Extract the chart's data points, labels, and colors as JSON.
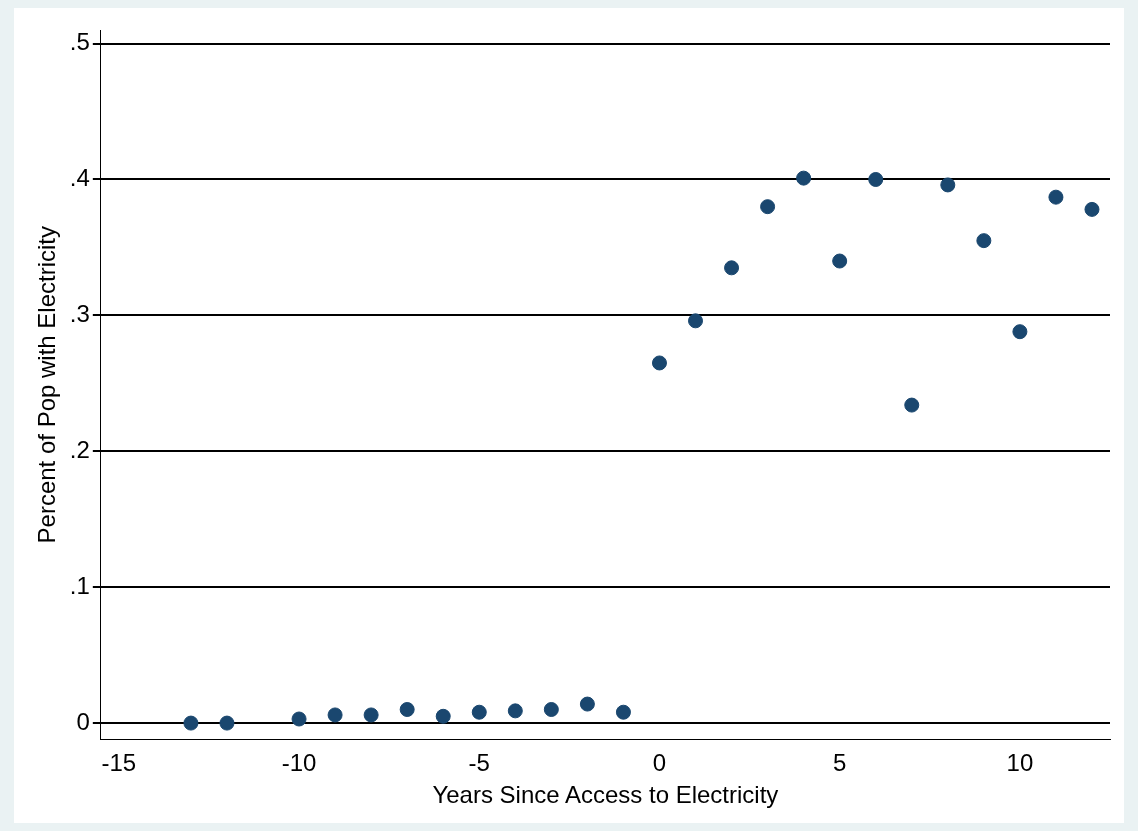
{
  "chart_data": {
    "type": "scatter",
    "xlabel": "Years Since Access to Electricity",
    "ylabel": "Percent of Pop with Electricity",
    "x": [
      -13,
      -12,
      -10,
      -9,
      -8,
      -7,
      -6,
      -5,
      -4,
      -3,
      -2,
      -1,
      0,
      1,
      2,
      3,
      4,
      5,
      6,
      7,
      8,
      9,
      10,
      11,
      12
    ],
    "series": [
      {
        "color": "#1a476f",
        "values": [
          0,
          0,
          0.003,
          0.006,
          0.006,
          0.01,
          0.005,
          0.008,
          0.009,
          0.01,
          0.014,
          0.008,
          0.265,
          0.296,
          0.335,
          0.38,
          0.401,
          0.34,
          0.4,
          0.234,
          0.396,
          0.355,
          0.288,
          0.387,
          0.378
        ]
      }
    ],
    "xlim": [
      -15.5,
      12.5
    ],
    "xticks": [
      -15,
      -10,
      -5,
      0,
      5,
      10
    ],
    "ylim": [
      -0.012,
      0.51
    ],
    "yticks": [
      {
        "value": 0,
        "label": "0"
      },
      {
        "value": 0.1,
        "label": ".1"
      },
      {
        "value": 0.2,
        "label": ".2"
      },
      {
        "value": 0.3,
        "label": ".3"
      },
      {
        "value": 0.4,
        "label": ".4"
      },
      {
        "value": 0.5,
        "label": ".5"
      }
    ],
    "grid": "y",
    "legend": false,
    "marker": "circle"
  }
}
